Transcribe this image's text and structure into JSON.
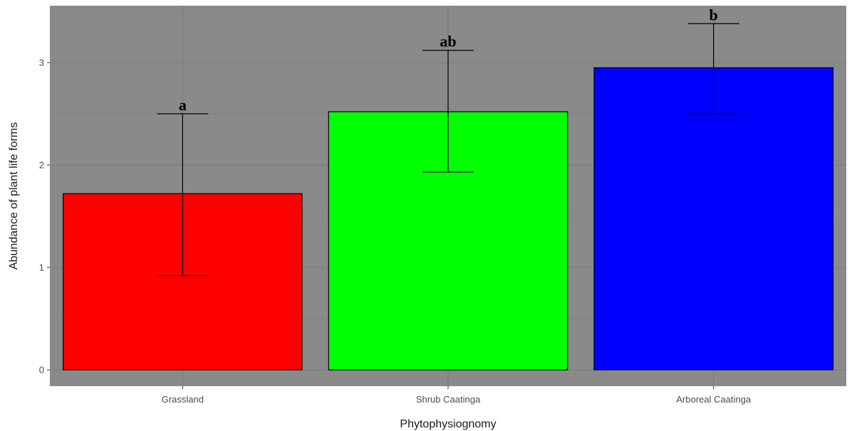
{
  "chart_data": {
    "type": "bar",
    "categories": [
      "Grassland",
      "Shrub Caatinga",
      "Arboreal Caatinga"
    ],
    "values": [
      1.72,
      2.52,
      2.95
    ],
    "error_low": [
      0.92,
      1.93,
      2.5
    ],
    "error_high": [
      2.5,
      3.12,
      3.38
    ],
    "significance_labels": [
      "a",
      "ab",
      "b"
    ],
    "colors": [
      "#ff0000",
      "#00ff00",
      "#0000ff"
    ],
    "xlabel": "Phytophysiognomy",
    "ylabel": "Abundance of plant life forms",
    "ylim": [
      -0.16,
      3.5
    ],
    "yticks": [
      "0",
      "1",
      "2",
      "3"
    ],
    "grid": true,
    "panel_background": "#8a8a8a",
    "grid_color": "#7a7a7a"
  }
}
